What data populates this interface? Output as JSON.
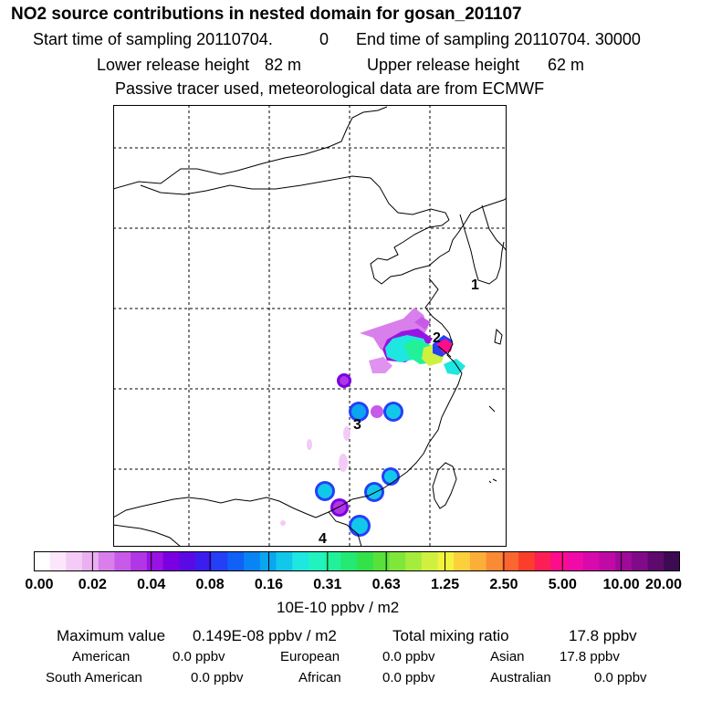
{
  "header": {
    "title": "NO2 source contributions in nested domain for gosan_201107",
    "start_label": "Start time of sampling 20110704.",
    "start_value": "0",
    "end_label": "End time of sampling 20110704. 30000",
    "lower_label": "Lower release height",
    "lower_value": "82 m",
    "upper_label": "Upper release height",
    "upper_value": "62 m",
    "note": "Passive tracer used, meteorological data are from ECMWF"
  },
  "map": {
    "region_labels": [
      "1",
      "2",
      "3",
      "4"
    ],
    "receptor_marker": "asterisk-icon"
  },
  "colorbar": {
    "tick_labels": [
      "0.00",
      "0.02",
      "0.04",
      "0.08",
      "0.16",
      "0.31",
      "0.63",
      "1.25",
      "2.50",
      "5.00",
      "10.00",
      "20.00"
    ],
    "unit_label": "10E-10 ppbv / m2",
    "colors": [
      "#ffffff",
      "#fbe6fb",
      "#f3cbf6",
      "#eab0f2",
      "#d97fec",
      "#c75ae8",
      "#b036e6",
      "#9813e3",
      "#7a00e1",
      "#5a0ae4",
      "#3b1df0",
      "#2440f7",
      "#1160f7",
      "#0984f4",
      "#0aa6f0",
      "#12c8ea",
      "#1ee6e0",
      "#20f2c0",
      "#22f19a",
      "#24e973",
      "#33e14a",
      "#58e13a",
      "#7fe63a",
      "#a6ec3c",
      "#cff03f",
      "#f2f23f",
      "#fbd03c",
      "#fbaf38",
      "#fb8a34",
      "#fb6630",
      "#fb3e2c",
      "#fb1f55",
      "#fb0d8c",
      "#f00aa8",
      "#d80aac",
      "#c00aa6",
      "#a00a98",
      "#800a88",
      "#5e0a6c",
      "#3c0a50"
    ]
  },
  "summary": {
    "max_label": "Maximum value",
    "max_value": "0.149E-08 ppbv / m2",
    "total_label": "Total mixing ratio",
    "total_value": "17.8 ppbv",
    "rows": [
      [
        {
          "name": "American",
          "value": "0.0 ppbv"
        },
        {
          "name": "European",
          "value": "0.0 ppbv"
        },
        {
          "name": "Asian",
          "value": "17.8 ppbv"
        }
      ],
      [
        {
          "name": "South American",
          "value": "0.0 ppbv"
        },
        {
          "name": "African",
          "value": "0.0 ppbv"
        },
        {
          "name": "Australian",
          "value": "0.0 ppbv"
        }
      ]
    ]
  }
}
